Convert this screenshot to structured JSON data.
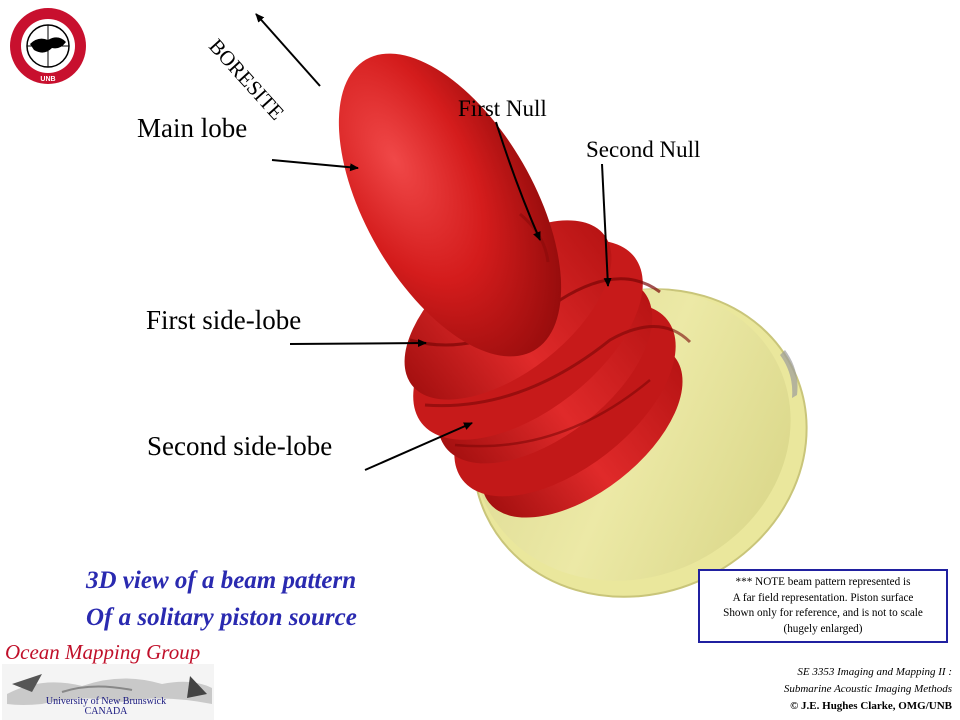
{
  "labels": {
    "boresite": "BORESITE",
    "main_lobe": "Main lobe",
    "first_null": "First Null",
    "second_null": "Second Null",
    "first_side_lobe": "First side-lobe",
    "second_side_lobe": "Second side-lobe"
  },
  "caption": {
    "line1": "3D view of a beam pattern",
    "line2": "Of a solitary piston source"
  },
  "note": {
    "line1": "*** NOTE beam pattern represented is",
    "line2": "A far field representation. Piston surface",
    "line3": "Shown only for reference, and is not to scale",
    "line4": "(hugely enlarged)"
  },
  "course": {
    "line1": "SE 3353 Imaging and Mapping II :",
    "line2": "Submarine Acoustic Imaging Methods",
    "copyright": "© J.E. Hughes Clarke, OMG/UNB"
  },
  "branding": {
    "group_name": "Ocean Mapping Group",
    "university": "University of New Brunswick",
    "country": "CANADA",
    "crest_text": "GEODESY AND GEOMATICS ENGINEERING",
    "crest_bottom": "UNB"
  },
  "colors": {
    "lobe_red": "#d81f1f",
    "piston_yellow": "#e6e49a",
    "caption_blue": "#2a2ab0",
    "group_red": "#c0102a"
  }
}
